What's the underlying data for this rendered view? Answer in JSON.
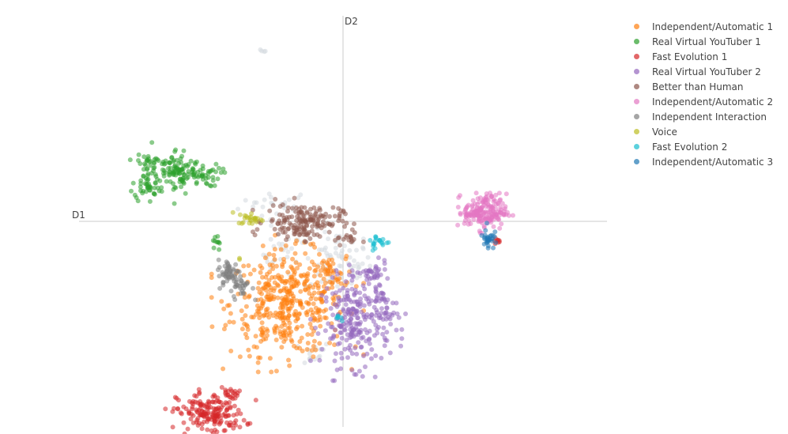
{
  "chart_data": {
    "type": "scatter",
    "x_axis_label": "D1",
    "y_axis_label": "D2",
    "xlim": [
      -10,
      10
    ],
    "ylim": [
      -7.5,
      7.5
    ],
    "legend_position": "top-right",
    "grid": false,
    "series": [
      {
        "name": "Independent/Automatic 1",
        "color": "#ff7f0e",
        "clusters": [
          {
            "cx": -2.1,
            "cy": -3.0,
            "rx": 1.5,
            "ry": 1.3,
            "n": 420
          },
          {
            "cx": -0.6,
            "cy": -2.0,
            "rx": 0.5,
            "ry": 0.5,
            "n": 40
          }
        ]
      },
      {
        "name": "Real Virtual YouTuber 1",
        "color": "#2ca02c",
        "clusters": [
          {
            "cx": -6.3,
            "cy": 1.8,
            "rx": 0.65,
            "ry": 0.6,
            "n": 90
          },
          {
            "cx": -7.4,
            "cy": 1.7,
            "rx": 0.35,
            "ry": 0.7,
            "n": 70
          },
          {
            "cx": -5.5,
            "cy": 1.7,
            "rx": 0.6,
            "ry": 0.3,
            "n": 50
          },
          {
            "cx": -4.8,
            "cy": -0.8,
            "rx": 0.1,
            "ry": 0.25,
            "n": 10
          }
        ]
      },
      {
        "name": "Fast Evolution 1",
        "color": "#d62728",
        "clusters": [
          {
            "cx": -5.0,
            "cy": -7.0,
            "rx": 0.9,
            "ry": 0.55,
            "n": 190
          },
          {
            "cx": -4.3,
            "cy": -6.3,
            "rx": 0.25,
            "ry": 0.15,
            "n": 12
          },
          {
            "cx": 5.8,
            "cy": -0.7,
            "rx": 0.1,
            "ry": 0.06,
            "n": 8
          }
        ]
      },
      {
        "name": "Real Virtual YouTuber 2",
        "color": "#9467bd",
        "clusters": [
          {
            "cx": 0.5,
            "cy": -3.7,
            "rx": 0.9,
            "ry": 1.1,
            "n": 240
          },
          {
            "cx": 1.1,
            "cy": -2.0,
            "rx": 0.4,
            "ry": 0.35,
            "n": 40
          },
          {
            "cx": 1.6,
            "cy": -3.2,
            "rx": 0.4,
            "ry": 0.6,
            "n": 30
          }
        ]
      },
      {
        "name": "Better than Human",
        "color": "#8c564b",
        "clusters": [
          {
            "cx": -1.5,
            "cy": 0.0,
            "rx": 1.0,
            "ry": 0.45,
            "n": 170
          },
          {
            "cx": 0.2,
            "cy": -0.6,
            "rx": 0.3,
            "ry": 0.2,
            "n": 15
          }
        ]
      },
      {
        "name": "Independent/Automatic 2",
        "color": "#e377c2",
        "clusters": [
          {
            "cx": 5.4,
            "cy": 0.35,
            "rx": 0.55,
            "ry": 0.45,
            "n": 170
          },
          {
            "cx": 4.9,
            "cy": 0.3,
            "rx": 0.35,
            "ry": 0.15,
            "n": 25
          }
        ]
      },
      {
        "name": "Independent Interaction",
        "color": "#7f7f7f",
        "clusters": [
          {
            "cx": -4.3,
            "cy": -1.9,
            "rx": 0.3,
            "ry": 0.35,
            "n": 55
          },
          {
            "cx": -3.8,
            "cy": -2.4,
            "rx": 0.25,
            "ry": 0.3,
            "n": 25
          }
        ]
      },
      {
        "name": "Voice",
        "color": "#bcbd22",
        "clusters": [
          {
            "cx": -3.5,
            "cy": 0.1,
            "rx": 0.35,
            "ry": 0.15,
            "n": 25
          },
          {
            "cx": -3.9,
            "cy": -1.4,
            "rx": 0.05,
            "ry": 0.05,
            "n": 2
          }
        ]
      },
      {
        "name": "Fast Evolution 2",
        "color": "#17becf",
        "clusters": [
          {
            "cx": 1.35,
            "cy": -0.75,
            "rx": 0.3,
            "ry": 0.2,
            "n": 20
          },
          {
            "cx": -0.1,
            "cy": -3.5,
            "rx": 0.15,
            "ry": 0.1,
            "n": 6
          }
        ]
      },
      {
        "name": "Independent/Automatic 3",
        "color": "#1f77b4",
        "clusters": [
          {
            "cx": 5.5,
            "cy": -0.6,
            "rx": 0.15,
            "ry": 0.3,
            "n": 30
          }
        ]
      }
    ],
    "unlabeled_points": {
      "color": "#d3d9de",
      "clusters": [
        {
          "cx": -2.5,
          "cy": 0.6,
          "rx": 1.0,
          "ry": 0.4,
          "n": 25
        },
        {
          "cx": -2.3,
          "cy": -1.2,
          "rx": 0.5,
          "ry": 0.5,
          "n": 25
        },
        {
          "cx": -0.2,
          "cy": -1.5,
          "rx": 0.9,
          "ry": 0.8,
          "n": 70
        },
        {
          "cx": -3.0,
          "cy": 6.2,
          "rx": 0.08,
          "ry": 0.08,
          "n": 4
        },
        {
          "cx": -1.5,
          "cy": -4.8,
          "rx": 0.8,
          "ry": 0.3,
          "n": 15
        }
      ]
    }
  }
}
